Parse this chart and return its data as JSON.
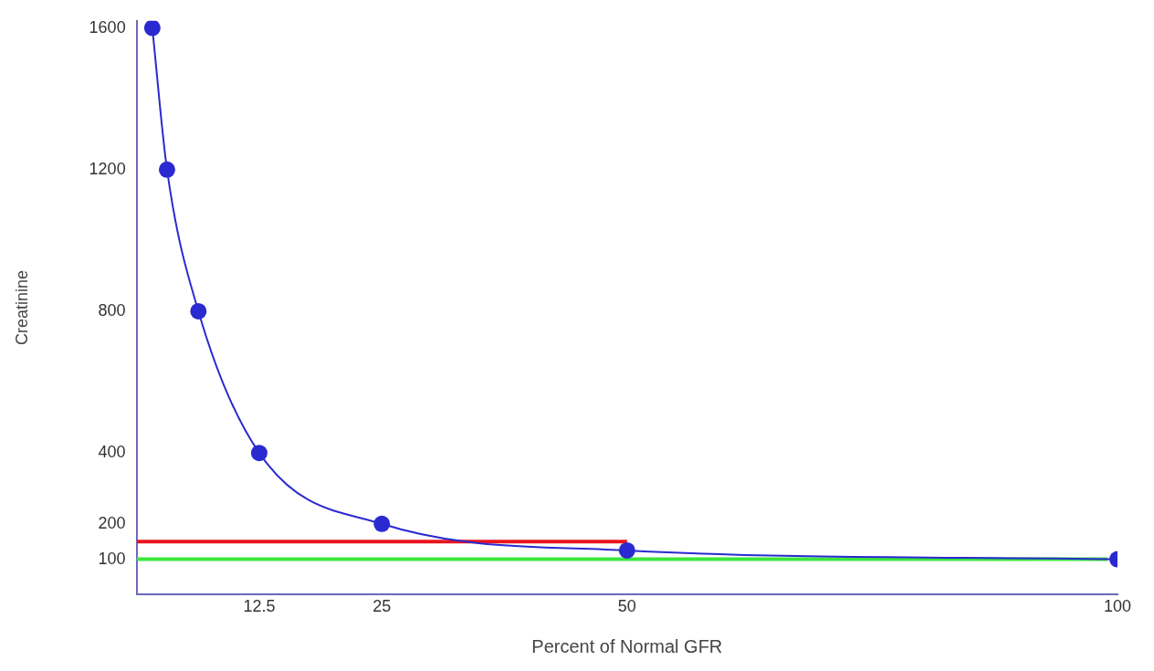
{
  "chart_data": {
    "type": "line",
    "xlabel": "Percent of Normal GFR",
    "ylabel": "Creatinine",
    "xlim": [
      0,
      100
    ],
    "xticks": [
      12.5,
      25,
      50,
      100
    ],
    "ylim": [
      0,
      1620
    ],
    "yticks": [
      100,
      200,
      400,
      800,
      1200,
      1600
    ],
    "grid": false,
    "legend": false,
    "marker": "circle",
    "series": [
      {
        "color": "#2a2ad0",
        "x": [
          1.6,
          3.1,
          6.3,
          12.5,
          25,
          50,
          100
        ],
        "values": [
          1600,
          1200,
          800,
          400,
          200,
          125,
          100
        ]
      },
      {
        "color": "#e8141e",
        "marker": "none",
        "x": [
          0,
          50
        ],
        "values": [
          150,
          150
        ]
      },
      {
        "color": "#3ce63c",
        "marker": "none",
        "x": [
          0,
          99
        ],
        "values": [
          100,
          100
        ]
      }
    ]
  }
}
